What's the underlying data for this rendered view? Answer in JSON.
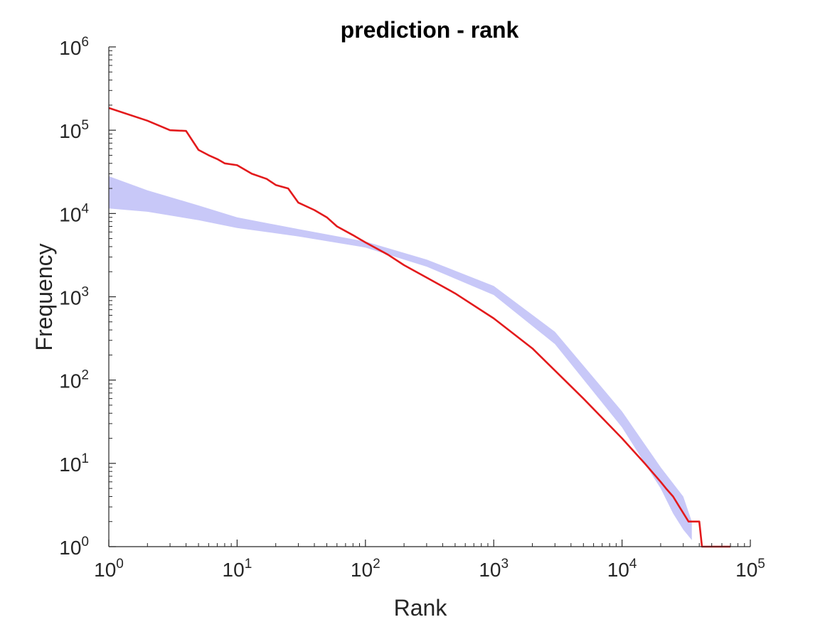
{
  "chart_data": {
    "type": "line",
    "title": "prediction - rank",
    "xlabel": "Rank",
    "ylabel": "Frequency",
    "xscale": "log",
    "yscale": "log",
    "xlim": [
      1,
      100000
    ],
    "ylim": [
      1,
      1000000
    ],
    "grid": false,
    "x_ticks": [
      {
        "base": "10",
        "exp": "0",
        "value": 1
      },
      {
        "base": "10",
        "exp": "1",
        "value": 10
      },
      {
        "base": "10",
        "exp": "2",
        "value": 100
      },
      {
        "base": "10",
        "exp": "3",
        "value": 1000
      },
      {
        "base": "10",
        "exp": "4",
        "value": 10000
      },
      {
        "base": "10",
        "exp": "5",
        "value": 100000
      }
    ],
    "y_ticks": [
      {
        "base": "10",
        "exp": "0",
        "value": 1
      },
      {
        "base": "10",
        "exp": "1",
        "value": 10
      },
      {
        "base": "10",
        "exp": "2",
        "value": 100
      },
      {
        "base": "10",
        "exp": "3",
        "value": 1000
      },
      {
        "base": "10",
        "exp": "4",
        "value": 10000
      },
      {
        "base": "10",
        "exp": "5",
        "value": 100000
      },
      {
        "base": "10",
        "exp": "6",
        "value": 1000000
      }
    ],
    "band": {
      "color": "#c8c8f8",
      "upper": [
        [
          1,
          28000
        ],
        [
          2,
          19000
        ],
        [
          5,
          12500
        ],
        [
          10,
          9000
        ],
        [
          30,
          6500
        ],
        [
          100,
          4600
        ],
        [
          300,
          2800
        ],
        [
          1000,
          1350
        ],
        [
          3000,
          380
        ],
        [
          10000,
          42
        ],
        [
          20000,
          9
        ],
        [
          30000,
          4
        ],
        [
          35000,
          2
        ]
      ],
      "lower": [
        [
          1,
          11500
        ],
        [
          2,
          10500
        ],
        [
          5,
          8300
        ],
        [
          10,
          6700
        ],
        [
          30,
          5300
        ],
        [
          100,
          3900
        ],
        [
          300,
          2300
        ],
        [
          1000,
          1050
        ],
        [
          3000,
          270
        ],
        [
          10000,
          27
        ],
        [
          20000,
          5
        ],
        [
          25000,
          2.5
        ],
        [
          30000,
          1.6
        ],
        [
          35000,
          1.2
        ]
      ]
    },
    "series": [
      {
        "color": "#e31a1c",
        "points": [
          [
            1,
            185000
          ],
          [
            2,
            130000
          ],
          [
            3,
            100000
          ],
          [
            4,
            98000
          ],
          [
            5,
            58000
          ],
          [
            6,
            50000
          ],
          [
            7,
            45000
          ],
          [
            8,
            40000
          ],
          [
            10,
            38000
          ],
          [
            13,
            30000
          ],
          [
            17,
            26000
          ],
          [
            20,
            22000
          ],
          [
            25,
            20000
          ],
          [
            30,
            13500
          ],
          [
            40,
            11000
          ],
          [
            50,
            9000
          ],
          [
            60,
            7000
          ],
          [
            80,
            5500
          ],
          [
            100,
            4500
          ],
          [
            150,
            3200
          ],
          [
            200,
            2400
          ],
          [
            300,
            1700
          ],
          [
            500,
            1100
          ],
          [
            1000,
            550
          ],
          [
            2000,
            240
          ],
          [
            3000,
            130
          ],
          [
            5000,
            60
          ],
          [
            10000,
            20
          ],
          [
            15000,
            10
          ],
          [
            20000,
            6
          ],
          [
            22000,
            5
          ],
          [
            25000,
            4
          ],
          [
            28000,
            3
          ],
          [
            33000,
            2
          ],
          [
            40000,
            2
          ],
          [
            42000,
            1
          ],
          [
            70000,
            1
          ]
        ]
      }
    ]
  }
}
